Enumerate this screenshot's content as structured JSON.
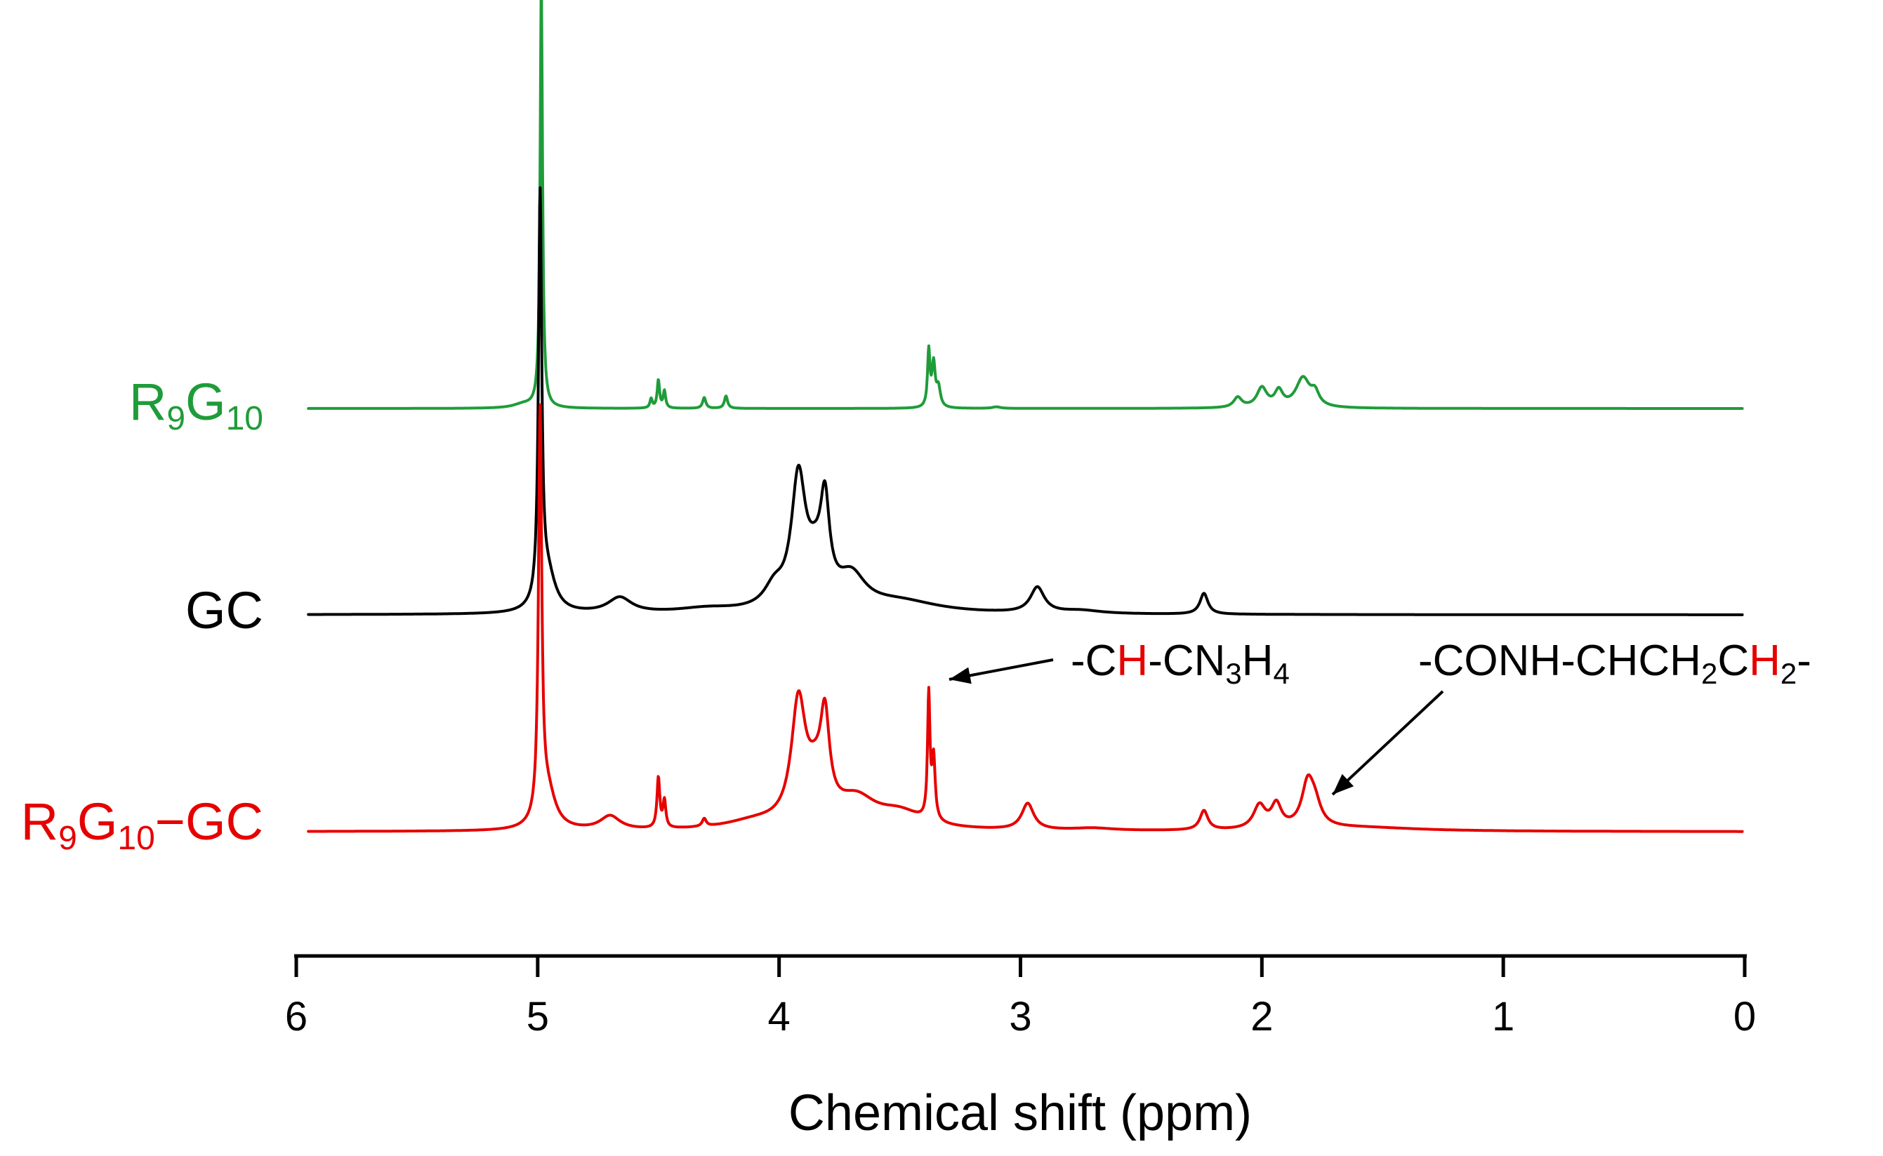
{
  "chart_data": {
    "type": "line",
    "title": "",
    "xlabel": "Chemical shift (ppm)",
    "ylabel": "",
    "xlim": [
      6,
      0
    ],
    "x_reversed": true,
    "y_axis_shown": false,
    "grid": false,
    "legend": "labels at left of each trace",
    "ticks": [
      "6",
      "5",
      "4",
      "3",
      "2",
      "1",
      "0"
    ],
    "colors": {
      "R9G10": "#1f9c3a",
      "GC": "#000000",
      "R9G10-GC": "#e60000",
      "highlight": "#e60000"
    },
    "series": [
      {
        "label": {
          "main": "R",
          "sub1": "9",
          "mid": "G",
          "sub2": "10",
          "tail": ""
        },
        "color_key": "R9G10",
        "peaks": [
          {
            "x": 4.985,
            "h": 5.5,
            "w": 0.006
          },
          {
            "x": 5.06,
            "h": 0.05,
            "w": 0.05
          },
          {
            "x": 4.5,
            "h": 0.36,
            "w": 0.006
          },
          {
            "x": 4.475,
            "h": 0.22,
            "w": 0.006
          },
          {
            "x": 4.53,
            "h": 0.12,
            "w": 0.006
          },
          {
            "x": 4.31,
            "h": 0.14,
            "w": 0.008
          },
          {
            "x": 4.22,
            "h": 0.16,
            "w": 0.008
          },
          {
            "x": 3.38,
            "h": 0.72,
            "w": 0.006
          },
          {
            "x": 3.36,
            "h": 0.55,
            "w": 0.008
          },
          {
            "x": 3.34,
            "h": 0.25,
            "w": 0.01
          },
          {
            "x": 3.1,
            "h": 0.02,
            "w": 0.02
          },
          {
            "x": 2.1,
            "h": 0.13,
            "w": 0.02
          },
          {
            "x": 2.0,
            "h": 0.25,
            "w": 0.025
          },
          {
            "x": 1.93,
            "h": 0.2,
            "w": 0.02
          },
          {
            "x": 1.83,
            "h": 0.38,
            "w": 0.035
          },
          {
            "x": 1.78,
            "h": 0.16,
            "w": 0.02
          }
        ]
      },
      {
        "label": {
          "main": "GC",
          "sub1": "",
          "mid": "",
          "sub2": "",
          "tail": ""
        },
        "color_key": "GC",
        "peaks": [
          {
            "x": 4.99,
            "h": 5.2,
            "w": 0.008
          },
          {
            "x": 4.96,
            "h": 0.5,
            "w": 0.04
          },
          {
            "x": 4.66,
            "h": 0.2,
            "w": 0.06
          },
          {
            "x": 4.3,
            "h": 0.06,
            "w": 0.15
          },
          {
            "x": 4.02,
            "h": 0.25,
            "w": 0.05
          },
          {
            "x": 3.92,
            "h": 1.6,
            "w": 0.035
          },
          {
            "x": 3.85,
            "h": 0.5,
            "w": 0.05
          },
          {
            "x": 3.81,
            "h": 1.1,
            "w": 0.022
          },
          {
            "x": 3.7,
            "h": 0.4,
            "w": 0.07
          },
          {
            "x": 3.5,
            "h": 0.15,
            "w": 0.2
          },
          {
            "x": 2.93,
            "h": 0.33,
            "w": 0.035
          },
          {
            "x": 2.75,
            "h": 0.04,
            "w": 0.1
          },
          {
            "x": 2.24,
            "h": 0.27,
            "w": 0.02
          }
        ]
      },
      {
        "label": {
          "main": "R",
          "sub1": "9",
          "mid": "G",
          "sub2": "10",
          "tail": "−GC"
        },
        "color_key": "R9G10-GC",
        "peaks": [
          {
            "x": 4.99,
            "h": 5.2,
            "w": 0.008
          },
          {
            "x": 4.96,
            "h": 0.5,
            "w": 0.04
          },
          {
            "x": 4.7,
            "h": 0.18,
            "w": 0.05
          },
          {
            "x": 4.5,
            "h": 0.65,
            "w": 0.007
          },
          {
            "x": 4.475,
            "h": 0.35,
            "w": 0.007
          },
          {
            "x": 4.31,
            "h": 0.1,
            "w": 0.01
          },
          {
            "x": 4.1,
            "h": 0.1,
            "w": 0.15
          },
          {
            "x": 3.92,
            "h": 1.5,
            "w": 0.035
          },
          {
            "x": 3.85,
            "h": 0.5,
            "w": 0.05
          },
          {
            "x": 3.81,
            "h": 1.1,
            "w": 0.022
          },
          {
            "x": 3.68,
            "h": 0.35,
            "w": 0.1
          },
          {
            "x": 3.5,
            "h": 0.2,
            "w": 0.12
          },
          {
            "x": 3.38,
            "h": 1.6,
            "w": 0.006
          },
          {
            "x": 3.36,
            "h": 0.8,
            "w": 0.008
          },
          {
            "x": 2.97,
            "h": 0.34,
            "w": 0.03
          },
          {
            "x": 2.7,
            "h": 0.03,
            "w": 0.1
          },
          {
            "x": 2.24,
            "h": 0.25,
            "w": 0.02
          },
          {
            "x": 2.01,
            "h": 0.3,
            "w": 0.03
          },
          {
            "x": 1.94,
            "h": 0.3,
            "w": 0.025
          },
          {
            "x": 1.81,
            "h": 0.55,
            "w": 0.03
          },
          {
            "x": 1.78,
            "h": 0.25,
            "w": 0.03
          },
          {
            "x": 1.6,
            "h": 0.05,
            "w": 0.3
          }
        ]
      }
    ],
    "annotations": [
      {
        "pre": "-C",
        "hi": "H",
        "post": "-CN",
        "sub_a": "3",
        "mid": "H",
        "sub_b": "4",
        "tail": "",
        "points_to_x": 3.36
      },
      {
        "pre": "-CONH-CHCH",
        "sub_a": "2",
        "post": "C",
        "hi": "H",
        "sub_b": "2",
        "tail": "-",
        "points_to_x": 1.8
      }
    ]
  }
}
